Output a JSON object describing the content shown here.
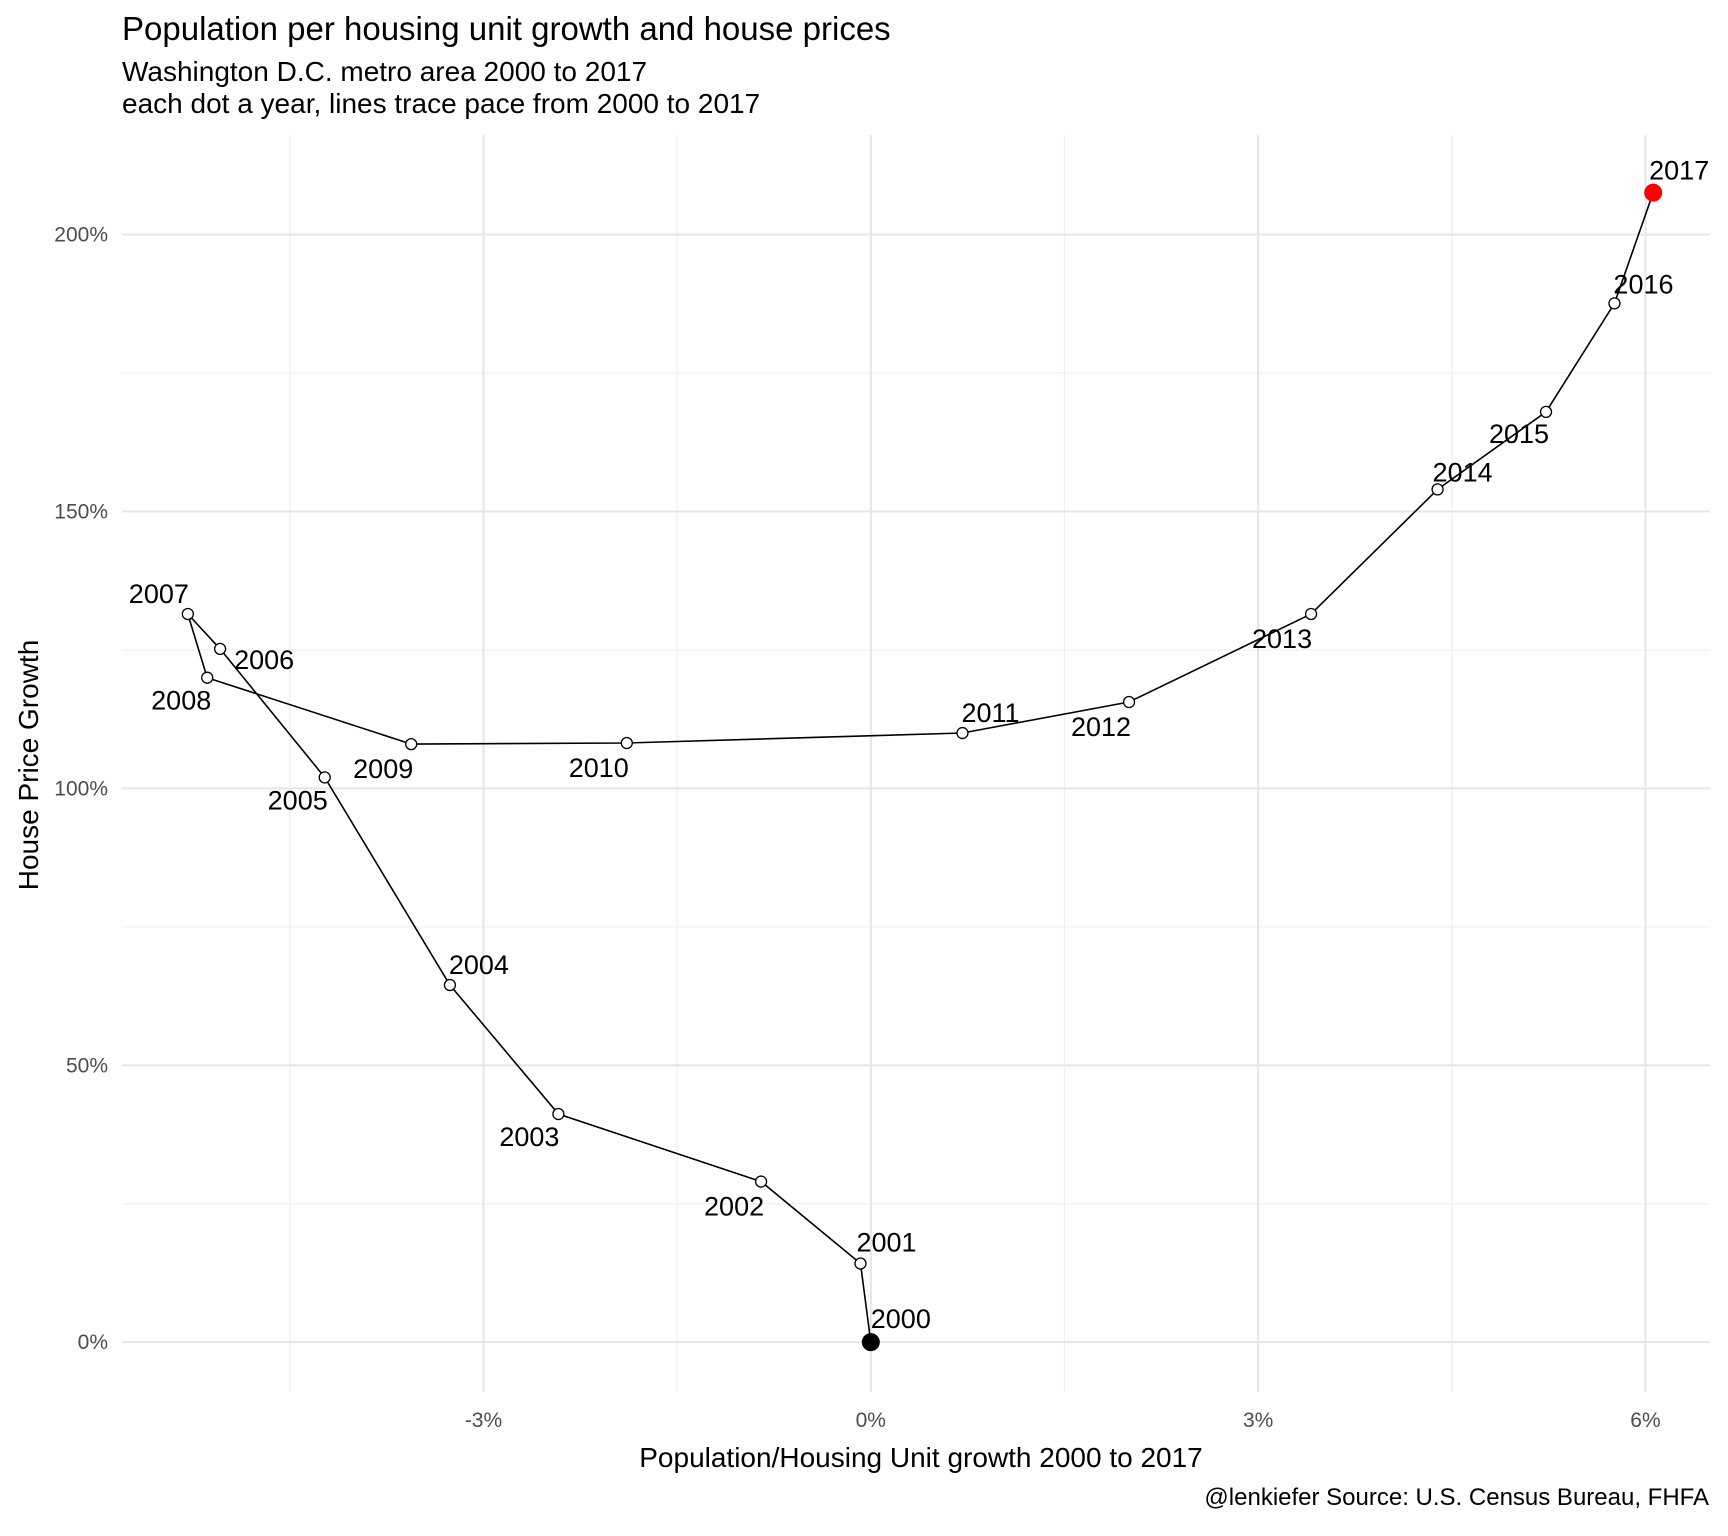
{
  "chart_data": {
    "type": "scatter",
    "title": "Population per housing unit growth and house prices",
    "subtitle_lines": [
      "Washington D.C. metro area 2000 to 2017",
      "each dot a year, lines trace pace from 2000 to 2017"
    ],
    "xlabel": "Population/Housing Unit growth 2000 to 2017",
    "ylabel": "House Price Growth",
    "caption": "@lenkiefer Source: U.S. Census Bureau, FHFA",
    "x_unit": "%",
    "y_unit": "%",
    "xlim": [
      -5.8,
      6.5
    ],
    "ylim": [
      -9,
      218
    ],
    "x_ticks": [
      -3,
      0,
      3,
      6
    ],
    "x_tick_labels": [
      "-3%",
      "0%",
      "3%",
      "6%"
    ],
    "y_ticks": [
      0,
      50,
      100,
      150,
      200
    ],
    "y_tick_labels": [
      "0%",
      "50%",
      "100%",
      "150%",
      "200%"
    ],
    "grid": true,
    "series": [
      {
        "points": [
          {
            "label": "2000",
            "x": 0.0,
            "y": 0.0
          },
          {
            "label": "2001",
            "x": -0.08,
            "y": 14.2
          },
          {
            "label": "2002",
            "x": -0.85,
            "y": 29.0
          },
          {
            "label": "2003",
            "x": -2.42,
            "y": 41.2
          },
          {
            "label": "2004",
            "x": -3.26,
            "y": 64.5
          },
          {
            "label": "2005",
            "x": -4.23,
            "y": 102.0
          },
          {
            "label": "2006",
            "x": -5.04,
            "y": 125.2
          },
          {
            "label": "2007",
            "x": -5.29,
            "y": 131.5
          },
          {
            "label": "2008",
            "x": -5.14,
            "y": 120.0
          },
          {
            "label": "2009",
            "x": -3.56,
            "y": 108.0
          },
          {
            "label": "2010",
            "x": -1.89,
            "y": 108.2
          },
          {
            "label": "2011",
            "x": 0.71,
            "y": 110.0
          },
          {
            "label": "2012",
            "x": 2.0,
            "y": 115.6
          },
          {
            "label": "2013",
            "x": 3.41,
            "y": 131.5
          },
          {
            "label": "2014",
            "x": 4.39,
            "y": 154.0
          },
          {
            "label": "2015",
            "x": 5.23,
            "y": 168.0
          },
          {
            "label": "2016",
            "x": 5.76,
            "y": 187.6
          },
          {
            "label": "2017",
            "x": 6.06,
            "y": 207.6
          }
        ]
      }
    ],
    "point_colors": {
      "first": "#000000",
      "last": "#ff0000",
      "middle": "#ffffff"
    }
  }
}
